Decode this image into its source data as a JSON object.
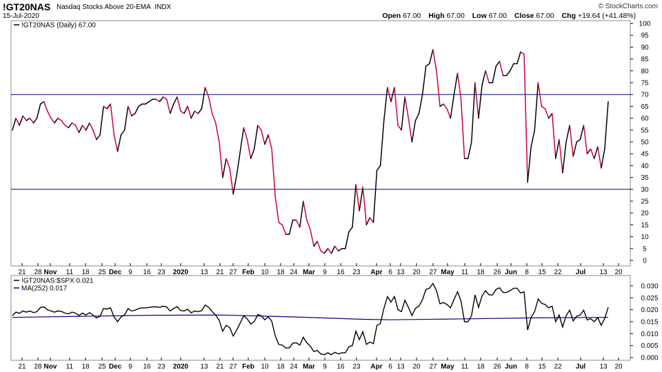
{
  "header": {
    "symbol": "!GT20NAS",
    "description": "Nasdaq Stocks Above 20-EMA",
    "exchange": "INDX",
    "date": "15-Jul-2020",
    "brand": "© StockCharts.com",
    "open_label": "Open",
    "open": "67.00",
    "high_label": "High",
    "high": "67.00",
    "low_label": "Low",
    "low": "67.00",
    "close_label": "Close",
    "close": "67.00",
    "chg_label": "Chg",
    "chg": "+19.64 (+41.48%)"
  },
  "chart_data": [
    {
      "type": "line",
      "legend": "!GT20NAS (Daily) 67.00",
      "ylim": [
        0,
        100
      ],
      "y_ticks": [
        0,
        5,
        10,
        15,
        20,
        25,
        30,
        35,
        40,
        45,
        50,
        55,
        60,
        65,
        70,
        75,
        80,
        85,
        90,
        95,
        100
      ],
      "hlines": [
        30,
        70
      ],
      "x_ticks": [
        "21",
        "28",
        "Nov",
        "11",
        "18",
        "25",
        "Dec",
        "9",
        "16",
        "23",
        "2020",
        "13",
        "21",
        "27",
        "Feb",
        "10",
        "18",
        "24",
        "Mar",
        "9",
        "16",
        "23",
        "Apr",
        "6",
        "13",
        "20",
        "27",
        "May",
        "11",
        "18",
        "26",
        "Jun",
        "8",
        "15",
        "22",
        "Jul",
        "13",
        "20"
      ],
      "month_ticks": [
        "Nov",
        "Dec",
        "2020",
        "Feb",
        "Mar",
        "Apr",
        "May",
        "Jun",
        "Jul"
      ],
      "colors": {
        "up": "#000000",
        "down": "#cc0033",
        "hline": "#000080"
      },
      "values": [
        55,
        60,
        57,
        61,
        59,
        60,
        58,
        60,
        66,
        67,
        63,
        60,
        58,
        60,
        59,
        57,
        56,
        58,
        57,
        54,
        57,
        55,
        58,
        55,
        51,
        53,
        65,
        64,
        66,
        53,
        46,
        53,
        55,
        65,
        61,
        62,
        65,
        66,
        66,
        67,
        68,
        68,
        67,
        69,
        68,
        62,
        66,
        69,
        63,
        62,
        65,
        60,
        63,
        62,
        64,
        73,
        69,
        62,
        58,
        50,
        35,
        43,
        39,
        28,
        36,
        46,
        56,
        51,
        43,
        47,
        57,
        55,
        49,
        53,
        47,
        27,
        16,
        15,
        11,
        11,
        17,
        17,
        14,
        25,
        17,
        13,
        6,
        8,
        4,
        3,
        5,
        3,
        6,
        4,
        5,
        5,
        12,
        14,
        32,
        21,
        31,
        15,
        18,
        16,
        38,
        40,
        59,
        73,
        67,
        73,
        57,
        55,
        69,
        60,
        50,
        59,
        62,
        70,
        82,
        83,
        89,
        80,
        65,
        66,
        64,
        60,
        70,
        79,
        68,
        43,
        43,
        50,
        75,
        60,
        74,
        80,
        75,
        75,
        82,
        84,
        78,
        78,
        80,
        83,
        83,
        88,
        87,
        33,
        48,
        55,
        75,
        65,
        64,
        60,
        62,
        43,
        51,
        37,
        50,
        57,
        44,
        50,
        51,
        57,
        45,
        47,
        43,
        48,
        39,
        47,
        67
      ]
    },
    {
      "type": "line",
      "series": [
        {
          "name": "!GT20NAS:$SPX 0.021",
          "color": "#000000",
          "values": [
            0.0175,
            0.019,
            0.0185,
            0.0195,
            0.019,
            0.0195,
            0.0188,
            0.0192,
            0.021,
            0.0212,
            0.02,
            0.0195,
            0.019,
            0.0195,
            0.0193,
            0.0186,
            0.0183,
            0.019,
            0.0186,
            0.0176,
            0.0186,
            0.0178,
            0.0188,
            0.0178,
            0.0166,
            0.0173,
            0.0205,
            0.0203,
            0.0208,
            0.017,
            0.015,
            0.017,
            0.0178,
            0.0205,
            0.0195,
            0.0198,
            0.0205,
            0.0208,
            0.0208,
            0.021,
            0.0212,
            0.0212,
            0.021,
            0.0215,
            0.0212,
            0.0195,
            0.0205,
            0.0213,
            0.0197,
            0.0195,
            0.0202,
            0.0187,
            0.0195,
            0.0192,
            0.0196,
            0.022,
            0.021,
            0.0192,
            0.0178,
            0.0155,
            0.011,
            0.0135,
            0.0125,
            0.009,
            0.0115,
            0.0145,
            0.0175,
            0.0162,
            0.014,
            0.015,
            0.018,
            0.0175,
            0.0158,
            0.017,
            0.0152,
            0.009,
            0.0055,
            0.0052,
            0.004,
            0.004,
            0.006,
            0.0062,
            0.0052,
            0.0085,
            0.0062,
            0.0048,
            0.0025,
            0.003,
            0.0015,
            0.0012,
            0.002,
            0.0012,
            0.0022,
            0.0015,
            0.002,
            0.002,
            0.0045,
            0.005,
            0.011,
            0.0075,
            0.0108,
            0.0055,
            0.0065,
            0.0058,
            0.0135,
            0.0142,
            0.0205,
            0.0255,
            0.0232,
            0.0255,
            0.02,
            0.0192,
            0.024,
            0.021,
            0.0176,
            0.0206,
            0.0215,
            0.0242,
            0.0285,
            0.029,
            0.031,
            0.028,
            0.0225,
            0.023,
            0.0222,
            0.0208,
            0.0243,
            0.0275,
            0.0237,
            0.015,
            0.015,
            0.0175,
            0.0262,
            0.021,
            0.0258,
            0.028,
            0.0262,
            0.0262,
            0.0285,
            0.0292,
            0.0272,
            0.0272,
            0.028,
            0.029,
            0.029,
            0.027,
            0.0275,
            0.0115,
            0.0168,
            0.0192,
            0.0245,
            0.0227,
            0.0222,
            0.0208,
            0.0215,
            0.015,
            0.0178,
            0.0128,
            0.0175,
            0.0198,
            0.0153,
            0.0173,
            0.0178,
            0.0198,
            0.0157,
            0.0163,
            0.015,
            0.0167,
            0.0135,
            0.0163,
            0.021
          ]
        },
        {
          "name": "MA(252) 0.017",
          "color": "#000080",
          "values_sparse": [
            [
              0,
              0.0168
            ],
            [
              40,
              0.0177
            ],
            [
              60,
              0.0178
            ],
            [
              80,
              0.017
            ],
            [
              100,
              0.016
            ],
            [
              108,
              0.0158
            ],
            [
              130,
              0.0162
            ],
            [
              150,
              0.0166
            ],
            [
              170,
              0.0168
            ]
          ]
        }
      ],
      "ylim": [
        0.0,
        0.032
      ],
      "y_ticks": [
        "0.000",
        "0.005",
        "0.010",
        "0.015",
        "0.020",
        "0.025",
        "0.030"
      ],
      "x_ticks": [
        "21",
        "28",
        "Nov",
        "11",
        "18",
        "25",
        "Dec",
        "9",
        "16",
        "23",
        "2020",
        "13",
        "21",
        "27",
        "Feb",
        "10",
        "18",
        "24",
        "Mar",
        "9",
        "16",
        "23",
        "Apr",
        "6",
        "13",
        "20",
        "27",
        "May",
        "11",
        "18",
        "26",
        "Jun",
        "8",
        "15",
        "22",
        "Jul",
        "13",
        "20"
      ]
    }
  ]
}
